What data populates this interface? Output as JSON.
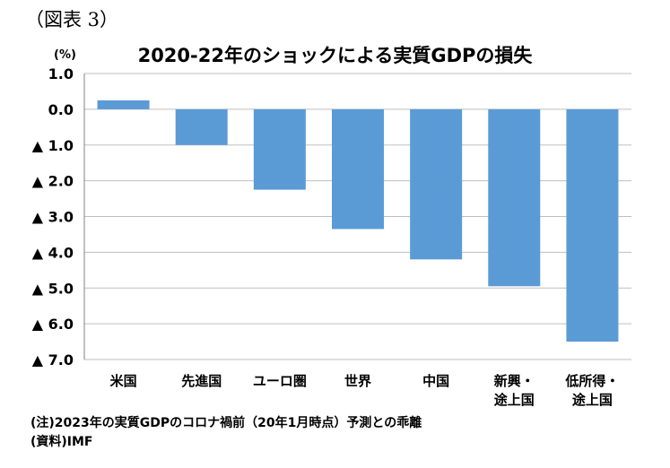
{
  "figure_label": "（図表 3）",
  "unit_label": "(%)",
  "notes": {
    "note": "(注)2023年の実質GDPのコロナ禍前（20年1月時点）予測との乖離",
    "source": "(資料)IMF"
  },
  "chart_data": {
    "type": "bar",
    "title": "2020-22年のショックによる実質GDPの損失",
    "categories": [
      [
        "米国"
      ],
      [
        "先進国"
      ],
      [
        "ユーロ圏"
      ],
      [
        "世界"
      ],
      [
        "中国"
      ],
      [
        "新興・",
        "途上国"
      ],
      [
        "低所得・",
        "途上国"
      ]
    ],
    "values": [
      0.25,
      -1.0,
      -2.25,
      -3.35,
      -4.2,
      -4.95,
      -6.5
    ],
    "ylim": [
      -7.0,
      1.0
    ],
    "yticks": [
      1.0,
      0.0,
      -1.0,
      -2.0,
      -3.0,
      -4.0,
      -5.0,
      -6.0,
      -7.0
    ],
    "ytick_labels": [
      "1.0",
      "0.0",
      "▲ 1.0",
      "▲ 2.0",
      "▲ 3.0",
      "▲ 4.0",
      "▲ 5.0",
      "▲ 6.0",
      "▲ 7.0"
    ],
    "bar_color": "#5b9bd5",
    "grid": true,
    "grid_color": "#bfbfbf"
  }
}
